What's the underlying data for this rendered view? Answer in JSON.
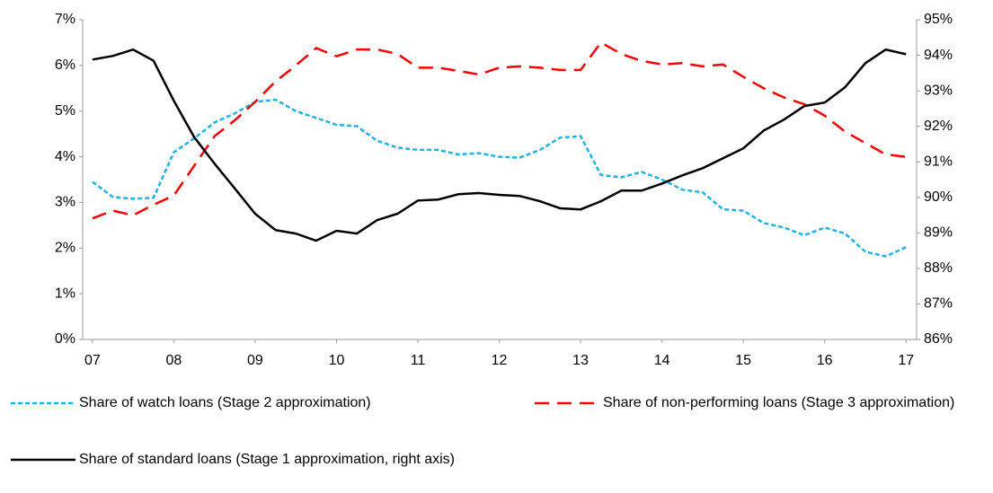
{
  "chart_data": {
    "type": "line",
    "x": [
      2007,
      2007.25,
      2007.5,
      2007.75,
      2008,
      2008.25,
      2008.5,
      2008.75,
      2009,
      2009.25,
      2009.5,
      2009.75,
      2010,
      2010.25,
      2010.5,
      2010.75,
      2011,
      2011.25,
      2011.5,
      2011.75,
      2012,
      2012.25,
      2012.5,
      2012.75,
      2013,
      2013.25,
      2013.5,
      2013.75,
      2014,
      2014.25,
      2014.5,
      2014.75,
      2015,
      2015.25,
      2015.5,
      2015.75,
      2016,
      2016.25,
      2016.5,
      2016.75,
      2017
    ],
    "xlim": [
      2006.88,
      2017.13
    ],
    "xticks": [
      {
        "value": 2007,
        "label": "07"
      },
      {
        "value": 2008,
        "label": "08"
      },
      {
        "value": 2009,
        "label": "09"
      },
      {
        "value": 2010,
        "label": "10"
      },
      {
        "value": 2011,
        "label": "11"
      },
      {
        "value": 2012,
        "label": "12"
      },
      {
        "value": 2013,
        "label": "13"
      },
      {
        "value": 2014,
        "label": "14"
      },
      {
        "value": 2015,
        "label": "15"
      },
      {
        "value": 2016,
        "label": "16"
      },
      {
        "value": 2017,
        "label": "17"
      }
    ],
    "ylim": [
      0,
      7
    ],
    "yticks": [
      {
        "value": 0,
        "label": "0%"
      },
      {
        "value": 1,
        "label": "1%"
      },
      {
        "value": 2,
        "label": "2%"
      },
      {
        "value": 3,
        "label": "3%"
      },
      {
        "value": 4,
        "label": "4%"
      },
      {
        "value": 5,
        "label": "5%"
      },
      {
        "value": 6,
        "label": "6%"
      },
      {
        "value": 7,
        "label": "7%"
      }
    ],
    "y2lim": [
      86,
      95
    ],
    "y2ticks": [
      {
        "value": 86,
        "label": "86%"
      },
      {
        "value": 87,
        "label": "87%"
      },
      {
        "value": 88,
        "label": "88%"
      },
      {
        "value": 89,
        "label": "89%"
      },
      {
        "value": 90,
        "label": "90%"
      },
      {
        "value": 91,
        "label": "91%"
      },
      {
        "value": 92,
        "label": "92%"
      },
      {
        "value": 93,
        "label": "93%"
      },
      {
        "value": 94,
        "label": "94%"
      },
      {
        "value": 95,
        "label": "95%"
      }
    ],
    "series": [
      {
        "name": "Share of watch loans (Stage 2 approximation)",
        "color": "#1fb4e6",
        "style": "dotted",
        "values": [
          3.45,
          3.12,
          3.08,
          3.1,
          4.1,
          4.4,
          4.75,
          4.95,
          5.2,
          5.25,
          5.0,
          4.85,
          4.7,
          4.67,
          4.35,
          4.2,
          4.15,
          4.15,
          4.05,
          4.08,
          4.0,
          3.98,
          4.15,
          4.42,
          4.45,
          3.6,
          3.55,
          3.67,
          3.5,
          3.28,
          3.22,
          2.85,
          2.82,
          2.55,
          2.45,
          2.28,
          2.45,
          2.32,
          1.92,
          1.82,
          2.02
        ]
      },
      {
        "name": "Share of non-performing loans  (Stage 3 approximation)",
        "color": "#ff0000",
        "style": "dashed",
        "values": [
          2.65,
          2.82,
          2.72,
          2.95,
          3.15,
          3.8,
          4.45,
          4.8,
          5.2,
          5.65,
          6.0,
          6.38,
          6.2,
          6.35,
          6.35,
          6.25,
          5.95,
          5.95,
          5.88,
          5.8,
          5.95,
          5.98,
          5.95,
          5.9,
          5.9,
          6.5,
          6.25,
          6.1,
          6.02,
          6.05,
          5.98,
          6.02,
          5.75,
          5.5,
          5.3,
          5.15,
          4.9,
          4.55,
          4.3,
          4.05,
          4.0
        ]
      },
      {
        "name": "Share of standard loans (Stage 1 approximation, right axis)",
        "color": "#000000",
        "style": "solid",
        "axis": "y2",
        "values": [
          93.88,
          93.98,
          94.16,
          93.85,
          92.72,
          91.7,
          90.95,
          90.25,
          89.54,
          89.08,
          88.98,
          88.78,
          89.06,
          88.98,
          89.36,
          89.54,
          89.91,
          89.94,
          90.09,
          90.12,
          90.07,
          90.04,
          89.89,
          89.69,
          89.66,
          89.89,
          90.19,
          90.19,
          90.39,
          90.62,
          90.82,
          91.1,
          91.38,
          91.88,
          92.19,
          92.57,
          92.67,
          93.1,
          93.78,
          94.16,
          94.03
        ]
      }
    ]
  }
}
